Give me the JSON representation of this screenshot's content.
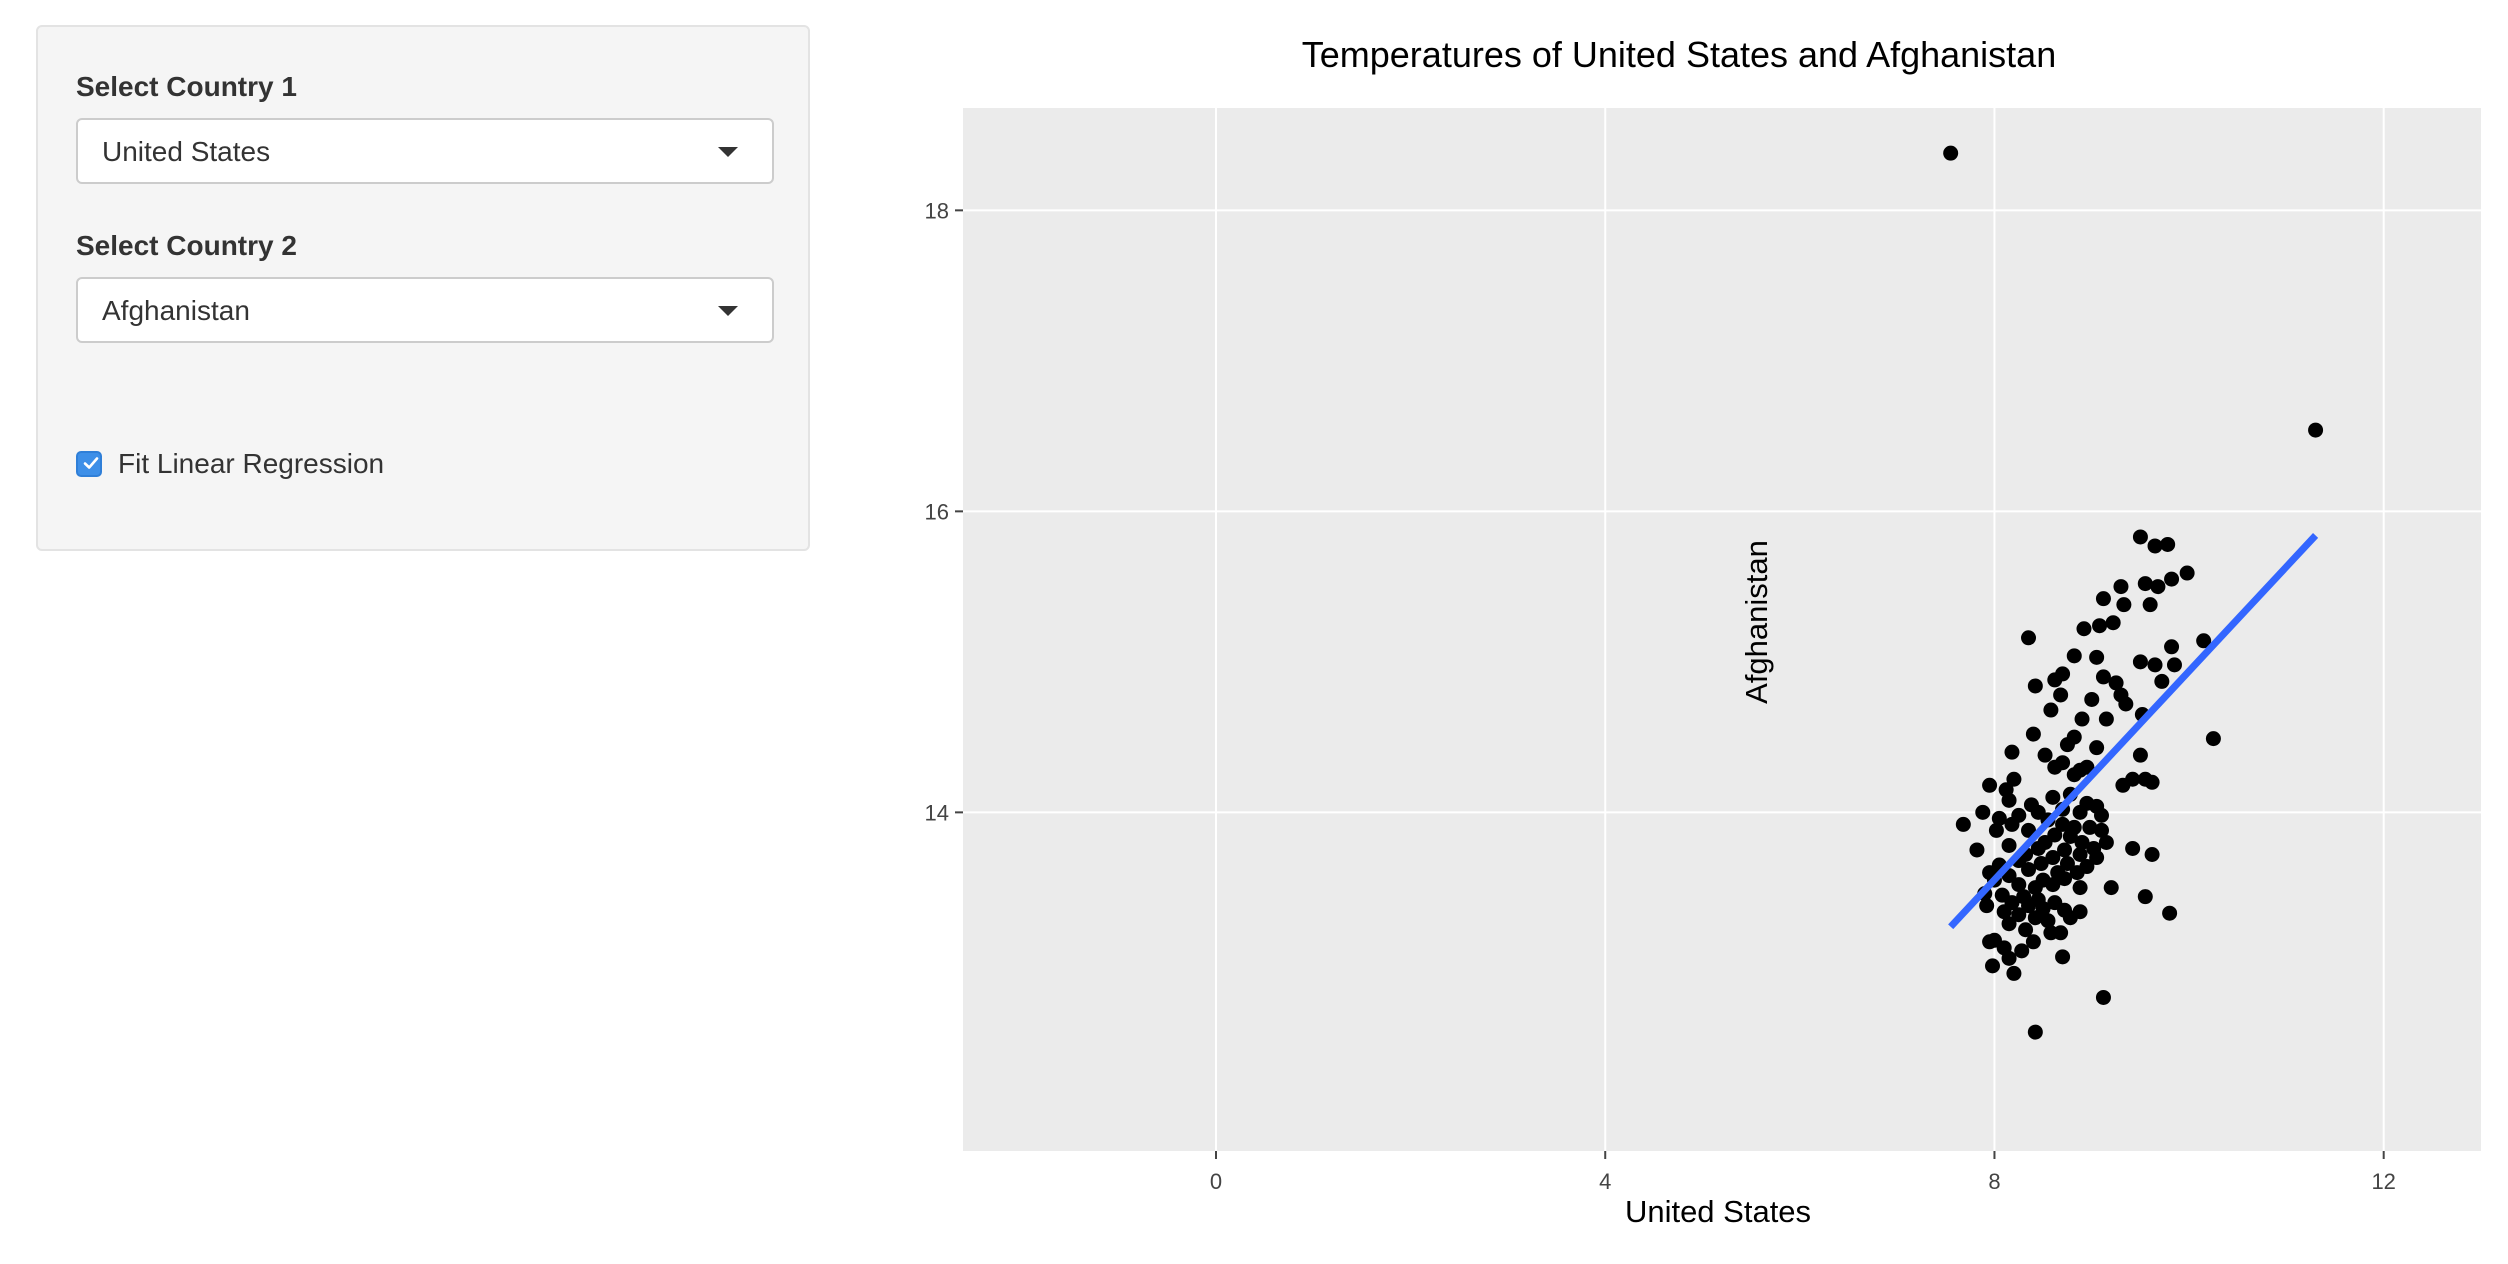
{
  "sidebar": {
    "country1_label": "Select Country 1",
    "country1_value": "United States",
    "country2_label": "Select Country 2",
    "country2_value": "Afghanistan",
    "regression_label": "Fit Linear Regression",
    "regression_checked": true
  },
  "chart_data": {
    "type": "scatter",
    "title": "Temperatures of United States and Afghanistan",
    "xlabel": "United States",
    "ylabel": "Afghanistan",
    "xlim": [
      -2.6,
      13.0
    ],
    "ylim": [
      11.75,
      18.68
    ],
    "xticks": [
      0,
      4,
      8,
      12
    ],
    "yticks": [
      14,
      16,
      18
    ],
    "grid": true,
    "background": "#ebebeb",
    "point_color": "#000000",
    "fit_color": "#3366ff",
    "regression_line": {
      "x": [
        7.55,
        11.3
      ],
      "y": [
        13.24,
        15.84
      ]
    },
    "points": [
      {
        "x": 7.55,
        "y": 18.38
      },
      {
        "x": 11.3,
        "y": 16.54
      },
      {
        "x": 9.5,
        "y": 15.83
      },
      {
        "x": 9.65,
        "y": 15.77
      },
      {
        "x": 9.78,
        "y": 15.78
      },
      {
        "x": 9.98,
        "y": 15.59
      },
      {
        "x": 9.55,
        "y": 15.52
      },
      {
        "x": 9.68,
        "y": 15.5
      },
      {
        "x": 9.82,
        "y": 15.55
      },
      {
        "x": 9.3,
        "y": 15.5
      },
      {
        "x": 9.33,
        "y": 15.38
      },
      {
        "x": 9.12,
        "y": 15.42
      },
      {
        "x": 9.6,
        "y": 15.38
      },
      {
        "x": 9.22,
        "y": 15.26
      },
      {
        "x": 8.92,
        "y": 15.22
      },
      {
        "x": 9.08,
        "y": 15.24
      },
      {
        "x": 8.35,
        "y": 15.16
      },
      {
        "x": 9.82,
        "y": 15.1
      },
      {
        "x": 10.15,
        "y": 15.14
      },
      {
        "x": 8.82,
        "y": 15.04
      },
      {
        "x": 9.05,
        "y": 15.03
      },
      {
        "x": 9.5,
        "y": 15.0
      },
      {
        "x": 9.65,
        "y": 14.98
      },
      {
        "x": 9.85,
        "y": 14.98
      },
      {
        "x": 8.7,
        "y": 14.92
      },
      {
        "x": 8.62,
        "y": 14.88
      },
      {
        "x": 9.12,
        "y": 14.9
      },
      {
        "x": 9.25,
        "y": 14.86
      },
      {
        "x": 8.42,
        "y": 14.84
      },
      {
        "x": 9.72,
        "y": 14.87
      },
      {
        "x": 8.68,
        "y": 14.78
      },
      {
        "x": 9.0,
        "y": 14.75
      },
      {
        "x": 9.3,
        "y": 14.78
      },
      {
        "x": 9.35,
        "y": 14.72
      },
      {
        "x": 9.52,
        "y": 14.65
      },
      {
        "x": 8.58,
        "y": 14.68
      },
      {
        "x": 8.9,
        "y": 14.62
      },
      {
        "x": 9.15,
        "y": 14.62
      },
      {
        "x": 8.4,
        "y": 14.52
      },
      {
        "x": 8.82,
        "y": 14.5
      },
      {
        "x": 10.25,
        "y": 14.49
      },
      {
        "x": 8.75,
        "y": 14.45
      },
      {
        "x": 9.05,
        "y": 14.43
      },
      {
        "x": 9.5,
        "y": 14.38
      },
      {
        "x": 8.52,
        "y": 14.38
      },
      {
        "x": 8.18,
        "y": 14.4
      },
      {
        "x": 8.7,
        "y": 14.33
      },
      {
        "x": 8.95,
        "y": 14.3
      },
      {
        "x": 8.88,
        "y": 14.28
      },
      {
        "x": 8.62,
        "y": 14.3
      },
      {
        "x": 8.82,
        "y": 14.25
      },
      {
        "x": 9.42,
        "y": 14.22
      },
      {
        "x": 9.62,
        "y": 14.2
      },
      {
        "x": 9.55,
        "y": 14.22
      },
      {
        "x": 9.32,
        "y": 14.18
      },
      {
        "x": 7.95,
        "y": 14.18
      },
      {
        "x": 8.2,
        "y": 14.22
      },
      {
        "x": 8.12,
        "y": 14.15
      },
      {
        "x": 8.6,
        "y": 14.1
      },
      {
        "x": 8.78,
        "y": 14.12
      },
      {
        "x": 8.95,
        "y": 14.06
      },
      {
        "x": 9.05,
        "y": 14.04
      },
      {
        "x": 8.15,
        "y": 14.08
      },
      {
        "x": 8.38,
        "y": 14.05
      },
      {
        "x": 8.45,
        "y": 14.0
      },
      {
        "x": 8.7,
        "y": 14.02
      },
      {
        "x": 8.88,
        "y": 14.0
      },
      {
        "x": 9.1,
        "y": 13.98
      },
      {
        "x": 7.88,
        "y": 14.0
      },
      {
        "x": 8.05,
        "y": 13.96
      },
      {
        "x": 8.25,
        "y": 13.98
      },
      {
        "x": 8.55,
        "y": 13.95
      },
      {
        "x": 8.7,
        "y": 13.92
      },
      {
        "x": 8.82,
        "y": 13.9
      },
      {
        "x": 8.98,
        "y": 13.9
      },
      {
        "x": 9.1,
        "y": 13.88
      },
      {
        "x": 7.68,
        "y": 13.92
      },
      {
        "x": 8.02,
        "y": 13.88
      },
      {
        "x": 8.18,
        "y": 13.92
      },
      {
        "x": 8.35,
        "y": 13.88
      },
      {
        "x": 8.62,
        "y": 13.85
      },
      {
        "x": 8.78,
        "y": 13.84
      },
      {
        "x": 8.52,
        "y": 13.8
      },
      {
        "x": 8.9,
        "y": 13.8
      },
      {
        "x": 9.15,
        "y": 13.8
      },
      {
        "x": 8.15,
        "y": 13.78
      },
      {
        "x": 8.45,
        "y": 13.76
      },
      {
        "x": 8.72,
        "y": 13.75
      },
      {
        "x": 9.02,
        "y": 13.76
      },
      {
        "x": 9.42,
        "y": 13.76
      },
      {
        "x": 7.82,
        "y": 13.75
      },
      {
        "x": 8.32,
        "y": 13.72
      },
      {
        "x": 8.88,
        "y": 13.72
      },
      {
        "x": 9.05,
        "y": 13.7
      },
      {
        "x": 9.62,
        "y": 13.72
      },
      {
        "x": 8.6,
        "y": 13.7
      },
      {
        "x": 8.25,
        "y": 13.68
      },
      {
        "x": 8.48,
        "y": 13.66
      },
      {
        "x": 8.75,
        "y": 13.66
      },
      {
        "x": 8.95,
        "y": 13.64
      },
      {
        "x": 8.05,
        "y": 13.65
      },
      {
        "x": 8.35,
        "y": 13.62
      },
      {
        "x": 8.65,
        "y": 13.6
      },
      {
        "x": 8.85,
        "y": 13.6
      },
      {
        "x": 7.95,
        "y": 13.6
      },
      {
        "x": 8.15,
        "y": 13.58
      },
      {
        "x": 8.5,
        "y": 13.55
      },
      {
        "x": 8.72,
        "y": 13.56
      },
      {
        "x": 8.0,
        "y": 13.55
      },
      {
        "x": 8.25,
        "y": 13.52
      },
      {
        "x": 8.42,
        "y": 13.5
      },
      {
        "x": 8.6,
        "y": 13.52
      },
      {
        "x": 8.88,
        "y": 13.5
      },
      {
        "x": 9.2,
        "y": 13.5
      },
      {
        "x": 7.9,
        "y": 13.46
      },
      {
        "x": 8.08,
        "y": 13.45
      },
      {
        "x": 8.3,
        "y": 13.44
      },
      {
        "x": 8.45,
        "y": 13.42
      },
      {
        "x": 8.62,
        "y": 13.4
      },
      {
        "x": 8.18,
        "y": 13.4
      },
      {
        "x": 9.55,
        "y": 13.44
      },
      {
        "x": 8.35,
        "y": 13.38
      },
      {
        "x": 8.5,
        "y": 13.36
      },
      {
        "x": 8.72,
        "y": 13.35
      },
      {
        "x": 8.88,
        "y": 13.34
      },
      {
        "x": 7.92,
        "y": 13.38
      },
      {
        "x": 8.1,
        "y": 13.34
      },
      {
        "x": 8.25,
        "y": 13.32
      },
      {
        "x": 8.42,
        "y": 13.3
      },
      {
        "x": 8.55,
        "y": 13.28
      },
      {
        "x": 8.78,
        "y": 13.3
      },
      {
        "x": 9.8,
        "y": 13.33
      },
      {
        "x": 8.15,
        "y": 13.26
      },
      {
        "x": 8.32,
        "y": 13.22
      },
      {
        "x": 8.58,
        "y": 13.2
      },
      {
        "x": 8.68,
        "y": 13.2
      },
      {
        "x": 8.0,
        "y": 13.15
      },
      {
        "x": 8.4,
        "y": 13.14
      },
      {
        "x": 7.95,
        "y": 13.14
      },
      {
        "x": 8.1,
        "y": 13.1
      },
      {
        "x": 8.28,
        "y": 13.08
      },
      {
        "x": 8.7,
        "y": 13.04
      },
      {
        "x": 8.15,
        "y": 13.03
      },
      {
        "x": 7.98,
        "y": 12.98
      },
      {
        "x": 8.2,
        "y": 12.93
      },
      {
        "x": 9.12,
        "y": 12.77
      },
      {
        "x": 8.42,
        "y": 12.54
      }
    ]
  }
}
